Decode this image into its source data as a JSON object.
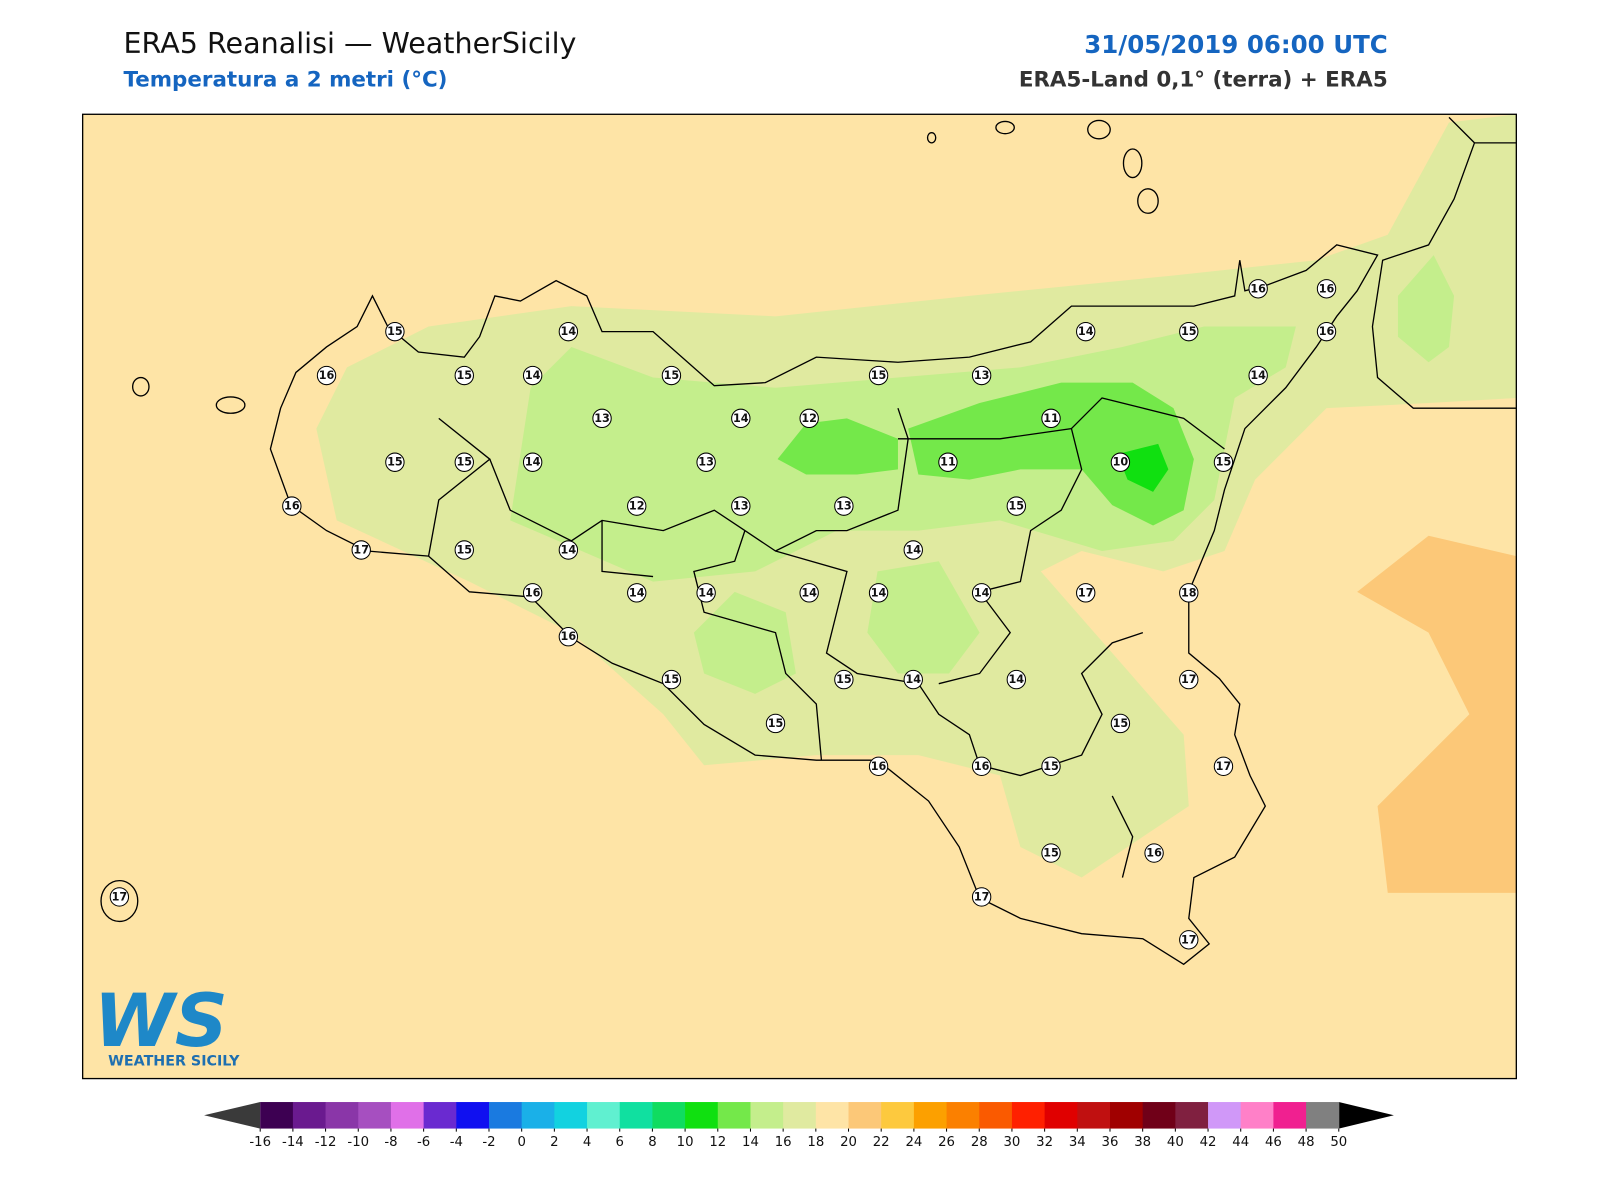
{
  "header": {
    "title": "ERA5 Reanalisi — WeatherSicily",
    "subtitle": "Temperatura a 2 metri (°C)",
    "datetime": "31/05/2019 06:00 UTC",
    "source": "ERA5-Land 0,1° (terra) + ERA5"
  },
  "stations": [
    15,
    16,
    15,
    14,
    14,
    15,
    13,
    14,
    12,
    15,
    13,
    14,
    15,
    16,
    16,
    16,
    14,
    11,
    11,
    10,
    15,
    15,
    15,
    14,
    13,
    16,
    12,
    13,
    13,
    15,
    17,
    15,
    14,
    14,
    16,
    14,
    14,
    14,
    14,
    14,
    17,
    18,
    16,
    15,
    15,
    14,
    14,
    17,
    15,
    15,
    16,
    16,
    15,
    17,
    15,
    16,
    17,
    17,
    17
  ],
  "colorbar": {
    "ticks": [
      -16,
      -14,
      -12,
      -10,
      -8,
      -6,
      -4,
      -2,
      0,
      2,
      4,
      6,
      8,
      10,
      12,
      14,
      16,
      18,
      20,
      22,
      24,
      26,
      28,
      30,
      32,
      34,
      36,
      38,
      40,
      42,
      44,
      46,
      48,
      50
    ],
    "colors": [
      "#3d0052",
      "#6a1a8f",
      "#8a36a8",
      "#a64fc0",
      "#e070e8",
      "#6a2ad0",
      "#1010f0",
      "#1a7ae0",
      "#1ab0e8",
      "#12d2e0",
      "#60f0d0",
      "#10e0a0",
      "#10dc60",
      "#10e010",
      "#74e84a",
      "#c4ee8c",
      "#e0eaa0",
      "#fee4a6",
      "#fcc878",
      "#fdc93e",
      "#fca000",
      "#fb8000",
      "#fa5a00",
      "#ff2000",
      "#e00000",
      "#c01010",
      "#a00000",
      "#700018",
      "#802040",
      "#d098f8",
      "#ff80c8",
      "#f02090",
      "#808080",
      "#404040"
    ],
    "under": "#3a3a3a",
    "over": "#000000"
  },
  "logo": {
    "text": "WS",
    "caption": "WEATHER SICILY"
  }
}
